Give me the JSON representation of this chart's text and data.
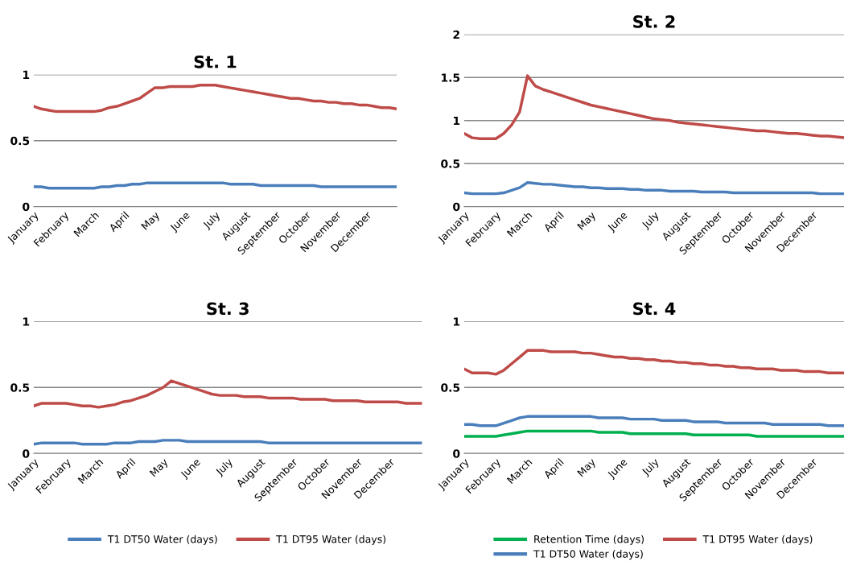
{
  "chart_data": [
    {
      "type": "line",
      "title": "St. 1",
      "categories": [
        "January",
        null,
        null,
        null,
        "February",
        null,
        null,
        null,
        "March",
        null,
        null,
        null,
        "April",
        null,
        null,
        null,
        "May",
        null,
        null,
        null,
        "June",
        null,
        null,
        null,
        "July",
        null,
        null,
        null,
        "August",
        null,
        null,
        null,
        "September",
        null,
        null,
        null,
        "October",
        null,
        null,
        null,
        "November",
        null,
        null,
        null,
        "December",
        null,
        null,
        null,
        null
      ],
      "ylim": [
        0,
        1
      ],
      "yticks": [
        0,
        0.5,
        1
      ],
      "grid": "y",
      "legend": false,
      "series": [
        {
          "color": "#4a7ebb",
          "values": [
            0.15,
            0.15,
            0.14,
            0.14,
            0.14,
            0.14,
            0.14,
            0.14,
            0.14,
            0.15,
            0.15,
            0.16,
            0.16,
            0.17,
            0.17,
            0.18,
            0.18,
            0.18,
            0.18,
            0.18,
            0.18,
            0.18,
            0.18,
            0.18,
            0.18,
            0.18,
            0.17,
            0.17,
            0.17,
            0.17,
            0.16,
            0.16,
            0.16,
            0.16,
            0.16,
            0.16,
            0.16,
            0.16,
            0.15,
            0.15,
            0.15,
            0.15,
            0.15,
            0.15,
            0.15,
            0.15,
            0.15,
            0.15,
            0.15
          ]
        },
        {
          "color": "#be4b48",
          "values": [
            0.76,
            0.74,
            0.73,
            0.72,
            0.72,
            0.72,
            0.72,
            0.72,
            0.72,
            0.73,
            0.75,
            0.76,
            0.78,
            0.8,
            0.82,
            0.86,
            0.9,
            0.9,
            0.91,
            0.91,
            0.91,
            0.91,
            0.92,
            0.92,
            0.92,
            0.91,
            0.9,
            0.89,
            0.88,
            0.87,
            0.86,
            0.85,
            0.84,
            0.83,
            0.82,
            0.82,
            0.81,
            0.8,
            0.8,
            0.79,
            0.79,
            0.78,
            0.78,
            0.77,
            0.77,
            0.76,
            0.75,
            0.75,
            0.74
          ]
        }
      ]
    },
    {
      "type": "line",
      "title": "St. 2",
      "categories": [
        "January",
        null,
        null,
        null,
        "February",
        null,
        null,
        null,
        "March",
        null,
        null,
        null,
        "April",
        null,
        null,
        null,
        "May",
        null,
        null,
        null,
        "June",
        null,
        null,
        null,
        "July",
        null,
        null,
        null,
        "August",
        null,
        null,
        null,
        "September",
        null,
        null,
        null,
        "October",
        null,
        null,
        null,
        "November",
        null,
        null,
        null,
        "December",
        null,
        null,
        null,
        null
      ],
      "ylim": [
        0,
        2
      ],
      "yticks": [
        0,
        0.5,
        1,
        1.5,
        2
      ],
      "grid": "y",
      "legend": false,
      "series": [
        {
          "color": "#4a7ebb",
          "values": [
            0.16,
            0.15,
            0.15,
            0.15,
            0.15,
            0.16,
            0.19,
            0.22,
            0.28,
            0.27,
            0.26,
            0.26,
            0.25,
            0.24,
            0.23,
            0.23,
            0.22,
            0.22,
            0.21,
            0.21,
            0.21,
            0.2,
            0.2,
            0.19,
            0.19,
            0.19,
            0.18,
            0.18,
            0.18,
            0.18,
            0.17,
            0.17,
            0.17,
            0.17,
            0.16,
            0.16,
            0.16,
            0.16,
            0.16,
            0.16,
            0.16,
            0.16,
            0.16,
            0.16,
            0.16,
            0.15,
            0.15,
            0.15,
            0.15
          ]
        },
        {
          "color": "#be4b48",
          "values": [
            0.85,
            0.8,
            0.79,
            0.79,
            0.79,
            0.85,
            0.95,
            1.1,
            1.52,
            1.4,
            1.36,
            1.33,
            1.3,
            1.27,
            1.24,
            1.21,
            1.18,
            1.16,
            1.14,
            1.12,
            1.1,
            1.08,
            1.06,
            1.04,
            1.02,
            1.01,
            1.0,
            0.98,
            0.97,
            0.96,
            0.95,
            0.94,
            0.93,
            0.92,
            0.91,
            0.9,
            0.89,
            0.88,
            0.88,
            0.87,
            0.86,
            0.85,
            0.85,
            0.84,
            0.83,
            0.82,
            0.82,
            0.81,
            0.8
          ]
        }
      ]
    },
    {
      "type": "line",
      "title": "St. 3",
      "categories": [
        "January",
        null,
        null,
        null,
        "February",
        null,
        null,
        null,
        "March",
        null,
        null,
        null,
        "April",
        null,
        null,
        null,
        "May",
        null,
        null,
        null,
        "June",
        null,
        null,
        null,
        "July",
        null,
        null,
        null,
        "August",
        null,
        null,
        null,
        "September",
        null,
        null,
        null,
        "October",
        null,
        null,
        null,
        "November",
        null,
        null,
        null,
        "December",
        null,
        null,
        null,
        null
      ],
      "ylim": [
        0,
        1
      ],
      "yticks": [
        0,
        0.5,
        1
      ],
      "grid": "y",
      "legend": "bottom",
      "series": [
        {
          "name": "T1 DT50 Water (days)",
          "color": "#4a7ebb",
          "values": [
            0.07,
            0.08,
            0.08,
            0.08,
            0.08,
            0.08,
            0.07,
            0.07,
            0.07,
            0.07,
            0.08,
            0.08,
            0.08,
            0.09,
            0.09,
            0.09,
            0.1,
            0.1,
            0.1,
            0.09,
            0.09,
            0.09,
            0.09,
            0.09,
            0.09,
            0.09,
            0.09,
            0.09,
            0.09,
            0.08,
            0.08,
            0.08,
            0.08,
            0.08,
            0.08,
            0.08,
            0.08,
            0.08,
            0.08,
            0.08,
            0.08,
            0.08,
            0.08,
            0.08,
            0.08,
            0.08,
            0.08,
            0.08,
            0.08
          ]
        },
        {
          "name": "T1 DT95 Water (days)",
          "color": "#be4b48",
          "values": [
            0.36,
            0.38,
            0.38,
            0.38,
            0.38,
            0.37,
            0.36,
            0.36,
            0.35,
            0.36,
            0.37,
            0.39,
            0.4,
            0.42,
            0.44,
            0.47,
            0.5,
            0.55,
            0.53,
            0.51,
            0.49,
            0.47,
            0.45,
            0.44,
            0.44,
            0.44,
            0.43,
            0.43,
            0.43,
            0.42,
            0.42,
            0.42,
            0.42,
            0.41,
            0.41,
            0.41,
            0.41,
            0.4,
            0.4,
            0.4,
            0.4,
            0.39,
            0.39,
            0.39,
            0.39,
            0.39,
            0.38,
            0.38,
            0.38
          ]
        }
      ]
    },
    {
      "type": "line",
      "title": "St. 4",
      "categories": [
        "January",
        null,
        null,
        null,
        "February",
        null,
        null,
        null,
        "March",
        null,
        null,
        null,
        "April",
        null,
        null,
        null,
        "May",
        null,
        null,
        null,
        "June",
        null,
        null,
        null,
        "July",
        null,
        null,
        null,
        "August",
        null,
        null,
        null,
        "September",
        null,
        null,
        null,
        "October",
        null,
        null,
        null,
        "November",
        null,
        null,
        null,
        "December",
        null,
        null,
        null,
        null
      ],
      "ylim": [
        0,
        1
      ],
      "yticks": [
        0,
        0.5,
        1
      ],
      "grid": "y",
      "legend": "bottom",
      "series": [
        {
          "name": "Retention Time (days)",
          "color": "#00b050",
          "values": [
            0.13,
            0.13,
            0.13,
            0.13,
            0.13,
            0.14,
            0.15,
            0.16,
            0.17,
            0.17,
            0.17,
            0.17,
            0.17,
            0.17,
            0.17,
            0.17,
            0.17,
            0.16,
            0.16,
            0.16,
            0.16,
            0.15,
            0.15,
            0.15,
            0.15,
            0.15,
            0.15,
            0.15,
            0.15,
            0.14,
            0.14,
            0.14,
            0.14,
            0.14,
            0.14,
            0.14,
            0.14,
            0.13,
            0.13,
            0.13,
            0.13,
            0.13,
            0.13,
            0.13,
            0.13,
            0.13,
            0.13,
            0.13,
            0.13
          ]
        },
        {
          "name": "T1 DT50 Water (days)",
          "color": "#4a7ebb",
          "values": [
            0.22,
            0.22,
            0.21,
            0.21,
            0.21,
            0.23,
            0.25,
            0.27,
            0.28,
            0.28,
            0.28,
            0.28,
            0.28,
            0.28,
            0.28,
            0.28,
            0.28,
            0.27,
            0.27,
            0.27,
            0.27,
            0.26,
            0.26,
            0.26,
            0.26,
            0.25,
            0.25,
            0.25,
            0.25,
            0.24,
            0.24,
            0.24,
            0.24,
            0.23,
            0.23,
            0.23,
            0.23,
            0.23,
            0.23,
            0.22,
            0.22,
            0.22,
            0.22,
            0.22,
            0.22,
            0.22,
            0.21,
            0.21,
            0.21
          ]
        },
        {
          "name": "T1 DT95 Water (days)",
          "color": "#be4b48",
          "values": [
            0.64,
            0.61,
            0.61,
            0.61,
            0.6,
            0.63,
            0.68,
            0.73,
            0.78,
            0.78,
            0.78,
            0.77,
            0.77,
            0.77,
            0.77,
            0.76,
            0.76,
            0.75,
            0.74,
            0.73,
            0.73,
            0.72,
            0.72,
            0.71,
            0.71,
            0.7,
            0.7,
            0.69,
            0.69,
            0.68,
            0.68,
            0.67,
            0.67,
            0.66,
            0.66,
            0.65,
            0.65,
            0.64,
            0.64,
            0.64,
            0.63,
            0.63,
            0.63,
            0.62,
            0.62,
            0.62,
            0.61,
            0.61,
            0.61
          ]
        }
      ]
    }
  ]
}
